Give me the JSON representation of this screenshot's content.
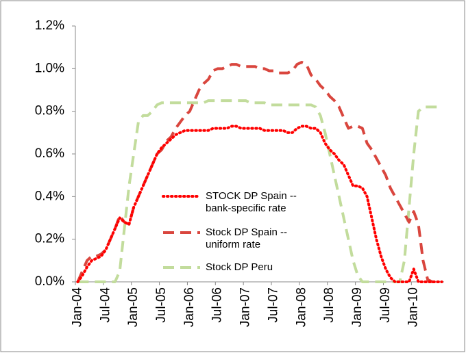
{
  "chart_data": {
    "type": "line",
    "categories": [
      "Jan-04",
      null,
      null,
      null,
      null,
      null,
      "Jul-04",
      null,
      null,
      null,
      null,
      null,
      "Jan-05",
      null,
      null,
      null,
      null,
      null,
      "Jul-05",
      null,
      null,
      null,
      null,
      null,
      "Jan-06",
      null,
      null,
      null,
      null,
      null,
      "Jul-06",
      null,
      null,
      null,
      null,
      null,
      "Jan-07",
      null,
      null,
      null,
      null,
      null,
      "Jul-07",
      null,
      null,
      null,
      null,
      null,
      "Jan-08",
      null,
      null,
      null,
      null,
      null,
      "Jul-08",
      null,
      null,
      null,
      null,
      null,
      "Jan-09",
      null,
      null,
      null,
      null,
      null,
      "Jul-09",
      null,
      null,
      null,
      null,
      null,
      "Jan-10",
      null,
      null,
      null,
      null,
      null,
      null
    ],
    "series": [
      {
        "name": "STOCK DP Spain -- bank-specific rate",
        "color": "#ff0000",
        "style": "dotted",
        "values": [
          0,
          0.03,
          0.07,
          0.1,
          0.11,
          0.12,
          0.15,
          0.2,
          0.25,
          0.3,
          0.28,
          0.27,
          0.35,
          0.4,
          0.45,
          0.5,
          0.55,
          0.6,
          0.63,
          0.65,
          0.67,
          0.69,
          0.7,
          0.71,
          0.71,
          0.71,
          0.71,
          0.71,
          0.71,
          0.72,
          0.72,
          0.72,
          0.72,
          0.73,
          0.73,
          0.72,
          0.72,
          0.72,
          0.72,
          0.72,
          0.71,
          0.71,
          0.71,
          0.71,
          0.71,
          0.7,
          0.7,
          0.72,
          0.73,
          0.73,
          0.72,
          0.72,
          0.7,
          0.65,
          0.62,
          0.6,
          0.57,
          0.55,
          0.5,
          0.45,
          0.45,
          0.44,
          0.4,
          0.3,
          0.2,
          0.12,
          0.06,
          0.02,
          0,
          0,
          0,
          0,
          0.06,
          0,
          0,
          0,
          0,
          0,
          0
        ]
      },
      {
        "name": "Stock DP Spain -- uniform rate",
        "color": "#d9463e",
        "style": "dashed",
        "values": [
          0,
          0.05,
          0.1,
          0.12,
          0.12,
          0.13,
          0.15,
          0.2,
          0.25,
          0.31,
          0.28,
          0.27,
          0.35,
          0.4,
          0.45,
          0.5,
          0.55,
          0.6,
          0.62,
          0.66,
          0.68,
          0.72,
          0.75,
          0.78,
          0.8,
          0.85,
          0.9,
          0.93,
          0.95,
          0.99,
          1.0,
          1.0,
          1.01,
          1.02,
          1.02,
          1.01,
          1.01,
          1.01,
          1.01,
          1.0,
          1.0,
          0.99,
          0.99,
          0.98,
          0.98,
          0.98,
          0.99,
          1.02,
          1.03,
          1.02,
          0.97,
          0.95,
          0.92,
          0.9,
          0.87,
          0.85,
          0.82,
          0.77,
          0.72,
          0.73,
          0.73,
          0.72,
          0.65,
          0.62,
          0.58,
          0.54,
          0.5,
          0.44,
          0.4,
          0.36,
          0.32,
          0.28,
          0.33,
          0.27,
          0.1,
          0.01,
          0,
          0,
          0
        ]
      },
      {
        "name": "Stock DP Peru",
        "color": "#c2dc9c",
        "style": "dashed",
        "values": [
          0,
          0,
          0,
          0,
          0,
          0,
          0,
          0,
          0,
          0.05,
          0.25,
          0.45,
          0.6,
          0.75,
          0.78,
          0.78,
          0.8,
          0.83,
          0.84,
          0.84,
          0.84,
          0.84,
          0.84,
          0.84,
          0.84,
          0.84,
          0.84,
          0.84,
          0.85,
          0.85,
          0.85,
          0.85,
          0.85,
          0.85,
          0.85,
          0.85,
          0.85,
          0.84,
          0.84,
          0.84,
          0.84,
          0.83,
          0.83,
          0.83,
          0.83,
          0.83,
          0.83,
          0.83,
          0.83,
          0.83,
          0.83,
          0.82,
          0.78,
          0.7,
          0.6,
          0.5,
          0.4,
          0.3,
          0.2,
          0.1,
          0.03,
          0,
          0,
          0,
          0,
          0,
          0,
          0,
          0,
          0,
          0.1,
          0.35,
          0.6,
          0.8,
          0.82,
          0.82,
          0.82,
          0.82,
          0.82
        ]
      }
    ],
    "ylim": [
      0,
      1.2
    ],
    "yticks": [
      {
        "value": 0,
        "label": "0.0%"
      },
      {
        "value": 0.2,
        "label": "0.2%"
      },
      {
        "value": 0.4,
        "label": "0.4%"
      },
      {
        "value": 0.6,
        "label": "0.6%"
      },
      {
        "value": 0.8,
        "label": "0.8%"
      },
      {
        "value": 1.0,
        "label": "1.0%"
      },
      {
        "value": 1.2,
        "label": "1.2%"
      }
    ],
    "grid": false,
    "legend": "center"
  }
}
